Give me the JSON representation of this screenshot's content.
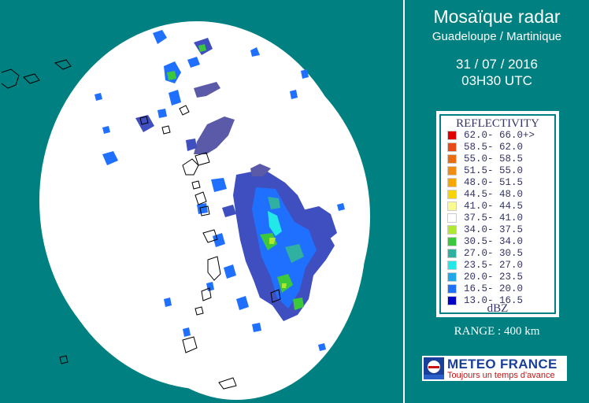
{
  "header": {
    "title": "Mosaïque radar",
    "subtitle": "Guadeloupe / Martinique",
    "date": "31 / 07 / 2016",
    "time": "03H30 UTC"
  },
  "legend": {
    "title": "REFLECTIVITY",
    "unit": "dBZ",
    "items": [
      {
        "range": "62.0- 66.0+>",
        "color": "#e00000"
      },
      {
        "range": "58.5- 62.0",
        "color": "#e84a18"
      },
      {
        "range": "55.0- 58.5",
        "color": "#ea6c10"
      },
      {
        "range": "51.5- 55.0",
        "color": "#f08c10"
      },
      {
        "range": "48.0- 51.5",
        "color": "#f4a800"
      },
      {
        "range": "44.5- 48.0",
        "color": "#f8d400"
      },
      {
        "range": "41.0- 44.5",
        "color": "#fafa90"
      },
      {
        "range": "37.5- 41.0",
        "color": "#ffffff"
      },
      {
        "range": "34.0- 37.5",
        "color": "#aee830"
      },
      {
        "range": "30.5- 34.0",
        "color": "#3cc83c"
      },
      {
        "range": "27.0- 30.5",
        "color": "#30b0a0"
      },
      {
        "range": "23.5- 27.0",
        "color": "#22e8e8"
      },
      {
        "range": "20.0- 23.5",
        "color": "#20a8e8"
      },
      {
        "range": "16.5- 20.0",
        "color": "#2070ff"
      },
      {
        "range": "13.0- 16.5",
        "color": "#0000c8"
      }
    ]
  },
  "range_label": "RANGE : 400 km",
  "logo": {
    "name": "METEO FRANCE",
    "tagline": "Toujours un temps d'avance"
  },
  "colors": {
    "background": "#008080",
    "coverage": "#ffffff",
    "coastline": "#000000",
    "light_echo": "#5a5aa8"
  }
}
